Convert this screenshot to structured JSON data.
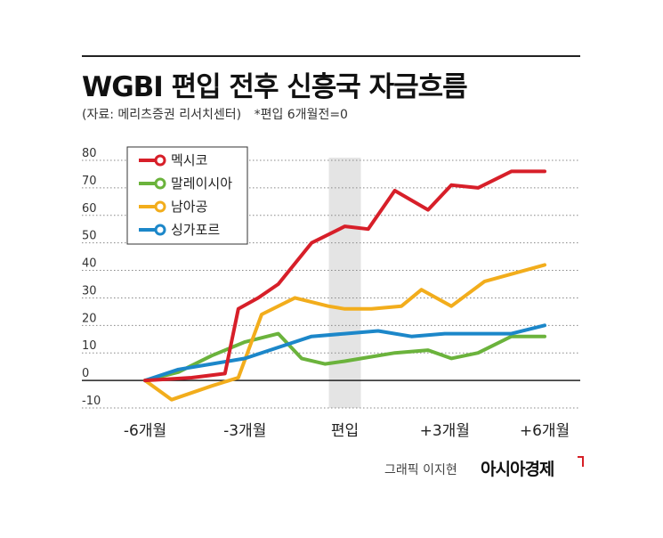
{
  "header": {
    "title": "WGBI 편입 전후 신흥국 자금흐름",
    "source": "(자료: 메리츠증권 리서치센터)",
    "note": "*편입 6개월전=0"
  },
  "footer": {
    "credit": "그래픽 이지현",
    "brand": "아시아경제"
  },
  "chart_data": {
    "type": "line",
    "x": [
      -6,
      -5,
      -4,
      -3,
      -2,
      -1,
      0,
      1,
      2,
      3,
      4,
      5,
      6
    ],
    "x_tick_labels": [
      {
        "x": -6,
        "label": "-6개월"
      },
      {
        "x": -3,
        "label": "-3개월"
      },
      {
        "x": 0,
        "label": "편입"
      },
      {
        "x": 3,
        "label": "+3개월"
      },
      {
        "x": 6,
        "label": "+6개월"
      }
    ],
    "y_ticks": [
      -10,
      0,
      10,
      20,
      30,
      40,
      50,
      60,
      70,
      80
    ],
    "ylim": [
      -10,
      80
    ],
    "highlight_x": 0,
    "grid": "horizontal-dotted",
    "legend_position": "top-left",
    "series": [
      {
        "name": "멕시코",
        "color": "#d71f29",
        "x": [
          -6,
          -5.3,
          -4.6,
          -3.6,
          -3.2,
          -2.6,
          -2.0,
          -1.0,
          0,
          0.7,
          1.5,
          2.5,
          3.2,
          4.0,
          5.0,
          6.0
        ],
        "values": [
          0,
          0.5,
          1,
          2.5,
          26,
          30,
          35,
          50,
          56,
          55,
          69,
          62,
          71,
          70,
          76,
          76
        ]
      },
      {
        "name": "말레이시아",
        "color": "#6bb33c",
        "x": [
          -6,
          -5.0,
          -4.0,
          -3.0,
          -2.0,
          -1.3,
          -0.6,
          0,
          0.5,
          1.5,
          2.5,
          3.2,
          4.0,
          5.0,
          6.0
        ],
        "values": [
          0,
          3,
          9,
          14,
          17,
          8,
          6,
          7,
          8,
          10,
          11,
          8,
          10,
          16,
          16
        ]
      },
      {
        "name": "남아공",
        "color": "#f2ad1c",
        "x": [
          -6,
          -5.2,
          -4.0,
          -3.2,
          -2.5,
          -1.5,
          -0.5,
          0,
          0.8,
          1.7,
          2.3,
          3.2,
          4.2,
          6.0
        ],
        "values": [
          0,
          -7,
          -2,
          1,
          24,
          30,
          27,
          26,
          26,
          27,
          33,
          27,
          36,
          42
        ]
      },
      {
        "name": "싱가포르",
        "color": "#1c87c9",
        "x": [
          -6,
          -5.0,
          -4.0,
          -3.0,
          -2.0,
          -1.0,
          0,
          1.0,
          2.0,
          3.0,
          4.0,
          5.0,
          6.0
        ],
        "values": [
          0,
          4,
          6,
          8,
          12,
          16,
          17,
          18,
          16,
          17,
          17,
          17,
          20
        ]
      }
    ]
  }
}
